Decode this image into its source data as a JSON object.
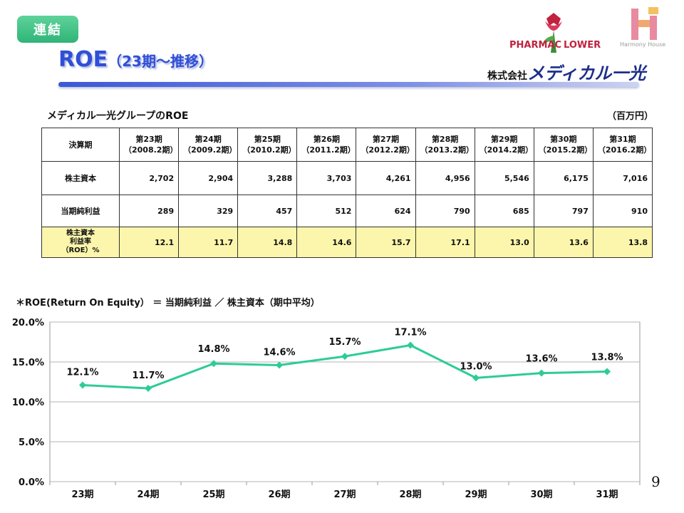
{
  "badge": "連結",
  "title": {
    "main": "ROE",
    "sub": "（23期～推移）"
  },
  "logo": {
    "left_text": "PHARMAC",
    "right_text": "LOWER",
    "hh_caption": "Harmony House"
  },
  "company": {
    "prefix": "株式会社",
    "name": "メディカル一光"
  },
  "table": {
    "title": "メディカル一光グループのROE",
    "unit": "（百万円）",
    "header_label": "決算期",
    "periods": [
      {
        "term": "第23期",
        "date": "（2008.2期）"
      },
      {
        "term": "第24期",
        "date": "（2009.2期）"
      },
      {
        "term": "第25期",
        "date": "（2010.2期）"
      },
      {
        "term": "第26期",
        "date": "（2011.2期）"
      },
      {
        "term": "第27期",
        "date": "（2012.2期）"
      },
      {
        "term": "第28期",
        "date": "（2013.2期）"
      },
      {
        "term": "第29期",
        "date": "（2014.2期）"
      },
      {
        "term": "第30期",
        "date": "（2015.2期）"
      },
      {
        "term": "第31期",
        "date": "（2016.2期）"
      }
    ],
    "rows": [
      {
        "label": "株主資本",
        "values": [
          "2,702",
          "2,904",
          "3,288",
          "3,703",
          "4,261",
          "4,956",
          "5,546",
          "6,175",
          "7,016"
        ]
      },
      {
        "label": "当期純利益",
        "values": [
          "289",
          "329",
          "457",
          "512",
          "624",
          "790",
          "685",
          "797",
          "910"
        ]
      }
    ],
    "roe_row": {
      "label_lines": [
        "株主資本",
        "利益率",
        "（ROE）%"
      ],
      "values": [
        "12.1",
        "11.7",
        "14.8",
        "14.6",
        "15.7",
        "17.1",
        "13.0",
        "13.6",
        "13.8"
      ]
    }
  },
  "note": "＊ROE(Return On Equity） ＝ 当期純利益 ／ 株主資本（期中平均）",
  "chart_data": {
    "type": "line",
    "title": "",
    "xlabel": "",
    "ylabel": "",
    "categories": [
      "23期",
      "24期",
      "25期",
      "26期",
      "27期",
      "28期",
      "29期",
      "30期",
      "31期"
    ],
    "series": [
      {
        "name": "ROE",
        "values": [
          12.1,
          11.7,
          14.8,
          14.6,
          15.7,
          17.1,
          13.0,
          13.6,
          13.8
        ]
      }
    ],
    "data_labels": [
      "12.1%",
      "11.7%",
      "14.8%",
      "14.6%",
      "15.7%",
      "17.1%",
      "13.0%",
      "13.6%",
      "13.8%"
    ],
    "ylim": [
      0,
      20
    ],
    "yticks": [
      "0.0%",
      "5.0%",
      "10.0%",
      "15.0%",
      "20.0%"
    ],
    "grid": true,
    "line_color": "#2ecc96"
  },
  "page_number": "9"
}
